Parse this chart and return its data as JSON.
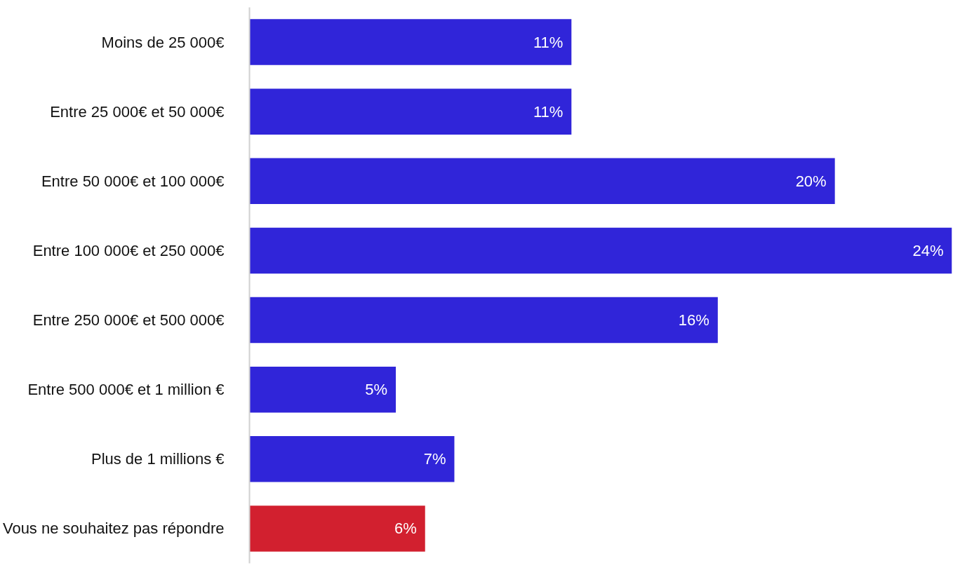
{
  "chart_data": {
    "type": "bar",
    "orientation": "horizontal",
    "categories": [
      "Moins de 25 000€",
      "Entre 25 000€ et 50 000€",
      "Entre 50 000€ et 100 000€",
      "Entre 100 000€ et 250 000€",
      "Entre 250 000€ et 500 000€",
      "Entre 500 000€ et 1 million €",
      "Plus de 1 millions €",
      "Vous ne souhaitez pas répondre"
    ],
    "values": [
      11,
      11,
      20,
      24,
      16,
      5,
      7,
      6
    ],
    "colors": [
      "#3025d9",
      "#3025d9",
      "#3025d9",
      "#3025d9",
      "#3025d9",
      "#3025d9",
      "#3025d9",
      "#d2202f"
    ],
    "value_labels": [
      "11%",
      "11%",
      "20%",
      "24%",
      "16%",
      "5%",
      "7%",
      "6%"
    ],
    "xlim": [
      0,
      24
    ],
    "grid": false,
    "tick_labels": "y"
  }
}
